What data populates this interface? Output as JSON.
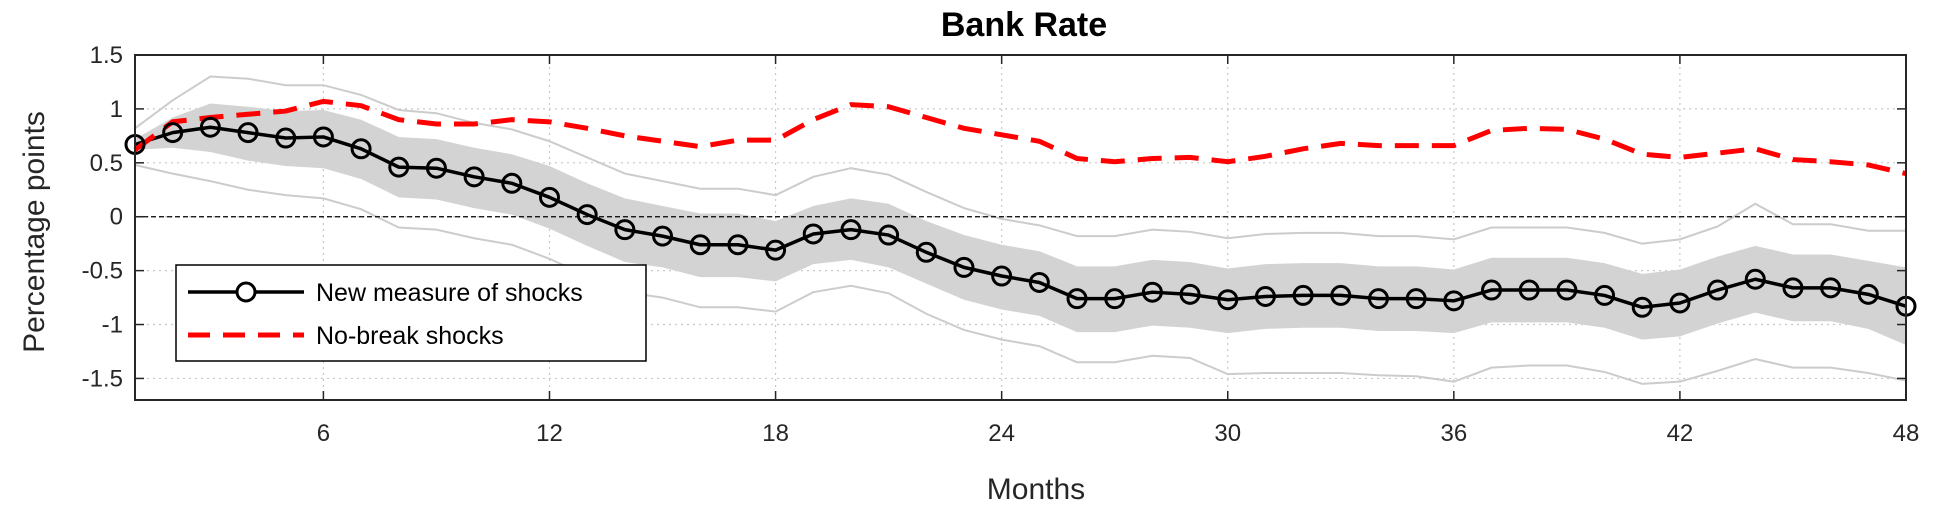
{
  "chart_data": {
    "type": "line",
    "title": "Bank Rate",
    "xlabel": "Months",
    "ylabel": "Percentage points",
    "xlim": [
      1,
      48
    ],
    "ylim": [
      -1.7,
      1.5
    ],
    "xticks": [
      6,
      12,
      18,
      24,
      30,
      36,
      42,
      48
    ],
    "yticks": [
      1.5,
      1,
      0.5,
      0,
      -0.5,
      -1,
      -1.5
    ],
    "ytick_labels": [
      "1.5",
      "1",
      "0.5",
      "0",
      "-0.5",
      "-1",
      "-1.5"
    ],
    "grid": true,
    "legend_position": "lower-left",
    "x": [
      1,
      2,
      3,
      4,
      5,
      6,
      7,
      8,
      9,
      10,
      11,
      12,
      13,
      14,
      15,
      16,
      17,
      18,
      19,
      20,
      21,
      22,
      23,
      24,
      25,
      26,
      27,
      28,
      29,
      30,
      31,
      32,
      33,
      34,
      35,
      36,
      37,
      38,
      39,
      40,
      41,
      42,
      43,
      44,
      45,
      46,
      47,
      48
    ],
    "series": [
      {
        "name": "New measure of shocks",
        "color": "#000000",
        "style": "solid-circle-markers",
        "values": [
          0.67,
          0.78,
          0.83,
          0.78,
          0.73,
          0.74,
          0.63,
          0.46,
          0.45,
          0.37,
          0.31,
          0.18,
          0.02,
          -0.12,
          -0.18,
          -0.26,
          -0.26,
          -0.31,
          -0.16,
          -0.12,
          -0.17,
          -0.33,
          -0.47,
          -0.55,
          -0.61,
          -0.76,
          -0.76,
          -0.7,
          -0.72,
          -0.77,
          -0.74,
          -0.73,
          -0.73,
          -0.76,
          -0.76,
          -0.78,
          -0.68,
          -0.68,
          -0.68,
          -0.73,
          -0.84,
          -0.8,
          -0.68,
          -0.58,
          -0.66,
          -0.66,
          -0.72,
          -0.83
        ]
      },
      {
        "name": "No-break shocks",
        "color": "#ff0000",
        "style": "dashed",
        "values": [
          0.62,
          0.88,
          0.92,
          0.95,
          0.98,
          1.07,
          1.03,
          0.9,
          0.86,
          0.86,
          0.9,
          0.88,
          0.82,
          0.75,
          0.7,
          0.65,
          0.71,
          0.71,
          0.9,
          1.04,
          1.02,
          0.92,
          0.82,
          0.76,
          0.7,
          0.54,
          0.51,
          0.54,
          0.55,
          0.51,
          0.56,
          0.63,
          0.68,
          0.66,
          0.66,
          0.66,
          0.8,
          0.82,
          0.81,
          0.72,
          0.58,
          0.55,
          0.59,
          0.63,
          0.53,
          0.51,
          0.48,
          0.4
        ]
      }
    ],
    "band_inner": {
      "color": "#d3d3d3",
      "upper": [
        0.72,
        0.92,
        1.05,
        1.02,
        0.98,
        0.99,
        0.9,
        0.74,
        0.72,
        0.64,
        0.58,
        0.47,
        0.31,
        0.17,
        0.1,
        0.03,
        0.03,
        -0.04,
        0.1,
        0.17,
        0.12,
        -0.04,
        -0.17,
        -0.26,
        -0.32,
        -0.46,
        -0.46,
        -0.4,
        -0.42,
        -0.48,
        -0.44,
        -0.43,
        -0.43,
        -0.46,
        -0.46,
        -0.49,
        -0.38,
        -0.38,
        -0.38,
        -0.43,
        -0.53,
        -0.49,
        -0.37,
        -0.27,
        -0.35,
        -0.35,
        -0.41,
        -0.47
      ],
      "lower": [
        0.62,
        0.64,
        0.6,
        0.52,
        0.47,
        0.45,
        0.35,
        0.18,
        0.16,
        0.08,
        0.02,
        -0.11,
        -0.27,
        -0.42,
        -0.47,
        -0.56,
        -0.56,
        -0.6,
        -0.44,
        -0.4,
        -0.47,
        -0.62,
        -0.77,
        -0.86,
        -0.92,
        -1.07,
        -1.07,
        -1.01,
        -1.03,
        -1.08,
        -1.04,
        -1.03,
        -1.03,
        -1.06,
        -1.06,
        -1.08,
        -0.98,
        -0.98,
        -0.98,
        -1.03,
        -1.14,
        -1.11,
        -0.99,
        -0.89,
        -0.97,
        -0.97,
        -1.04,
        -1.19
      ]
    },
    "band_outer": {
      "color": "#cccccc",
      "upper": [
        0.82,
        1.08,
        1.3,
        1.28,
        1.22,
        1.22,
        1.13,
        0.99,
        0.96,
        0.87,
        0.81,
        0.7,
        0.55,
        0.4,
        0.33,
        0.26,
        0.26,
        0.2,
        0.37,
        0.45,
        0.39,
        0.23,
        0.08,
        -0.02,
        -0.08,
        -0.18,
        -0.18,
        -0.12,
        -0.14,
        -0.2,
        -0.16,
        -0.15,
        -0.15,
        -0.18,
        -0.18,
        -0.21,
        -0.1,
        -0.1,
        -0.1,
        -0.15,
        -0.25,
        -0.21,
        -0.09,
        0.12,
        -0.07,
        -0.07,
        -0.13,
        -0.13
      ],
      "lower": [
        0.48,
        0.4,
        0.33,
        0.25,
        0.2,
        0.17,
        0.07,
        -0.1,
        -0.12,
        -0.2,
        -0.26,
        -0.39,
        -0.55,
        -0.7,
        -0.75,
        -0.84,
        -0.84,
        -0.88,
        -0.7,
        -0.64,
        -0.71,
        -0.9,
        -1.05,
        -1.14,
        -1.2,
        -1.35,
        -1.35,
        -1.29,
        -1.31,
        -1.46,
        -1.45,
        -1.45,
        -1.45,
        -1.47,
        -1.48,
        -1.53,
        -1.4,
        -1.38,
        -1.38,
        -1.44,
        -1.55,
        -1.53,
        -1.43,
        -1.32,
        -1.4,
        -1.4,
        -1.45,
        -1.52
      ]
    }
  }
}
